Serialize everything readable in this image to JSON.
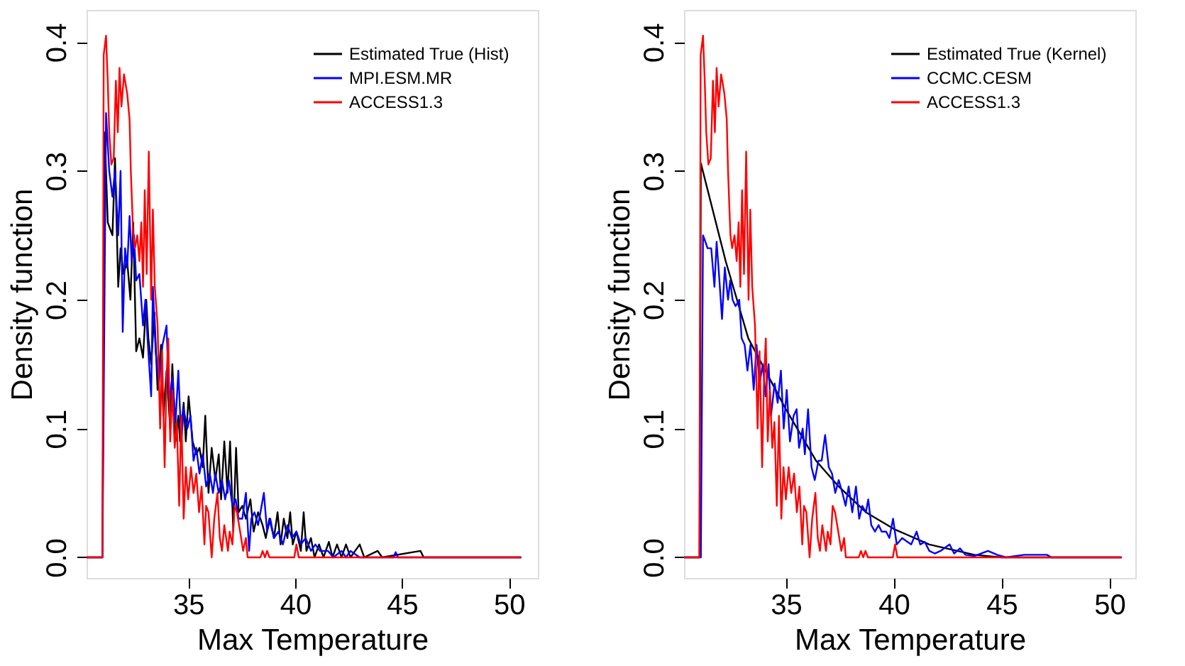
{
  "chart_data": [
    {
      "type": "line",
      "xlabel": "Max Temperature",
      "ylabel": "Density function",
      "xlim": [
        30.25,
        51.35
      ],
      "ylim": [
        -0.016,
        0.425
      ],
      "xticks": [
        35,
        40,
        45,
        50
      ],
      "yticks": [
        {
          "value": 0,
          "label": "0.0"
        },
        0.1,
        0.2,
        0.3,
        0.4
      ],
      "grid": false,
      "legend": "top right",
      "series": [
        {
          "name": "Estimated True (Hist)",
          "color": "#000000",
          "x": [
            30.25,
            30.99,
            31.1,
            31.24,
            31.46,
            31.58,
            31.73,
            31.84,
            31.98,
            32.15,
            32.3,
            32.43,
            32.57,
            32.72,
            32.89,
            33.04,
            33.14,
            33.27,
            33.42,
            33.57,
            33.73,
            33.84,
            33.99,
            34.16,
            34.26,
            34.41,
            34.54,
            34.62,
            34.79,
            34.89,
            35.02,
            35.21,
            35.38,
            35.53,
            35.68,
            35.8,
            35.95,
            36.1,
            36.27,
            36.43,
            36.54,
            36.69,
            36.84,
            36.96,
            37.11,
            37.24,
            37.36,
            37.53,
            37.7,
            37.91,
            38.06,
            38.27,
            38.48,
            38.63,
            38.8,
            39.01,
            39.18,
            39.32,
            39.47,
            39.64,
            39.77,
            39.89,
            40.06,
            40.27,
            40.4,
            40.53,
            40.74,
            40.91,
            41.12,
            41.33,
            41.58,
            41.75,
            41.96,
            42.17,
            42.38,
            42.59,
            43.02,
            43.23,
            43.86,
            44.07,
            45.86,
            46.01,
            50.57
          ],
          "values": [
            0,
            0,
            0.33,
            0.26,
            0.25,
            0.31,
            0.21,
            0.24,
            0.22,
            0.23,
            0.2,
            0.26,
            0.16,
            0.17,
            0.155,
            0.2,
            0.17,
            0.15,
            0.19,
            0.13,
            0.165,
            0.11,
            0.145,
            0.1,
            0.15,
            0.09,
            0.11,
            0.09,
            0.12,
            0.09,
            0.125,
            0.09,
            0.08,
            0.085,
            0.07,
            0.11,
            0.05,
            0.085,
            0.06,
            0.08,
            0.045,
            0.09,
            0.05,
            0.09,
            0.02,
            0.085,
            0.035,
            0.04,
            0.03,
            0.045,
            0.02,
            0.035,
            0.025,
            0.015,
            0.03,
            0.015,
            0.035,
            0.01,
            0.03,
            0.015,
            0.035,
            0.01,
            0.02,
            0.005,
            0.035,
            0.005,
            0.015,
            0,
            0.01,
            0,
            0.012,
            0,
            0.01,
            0,
            0.01,
            0,
            0.01,
            0,
            0.005,
            0,
            0.005,
            0,
            0
          ]
        },
        {
          "name": "MPI.ESM.MR",
          "color": "#0000ff",
          "x": [
            30.25,
            30.99,
            31.16,
            31.31,
            31.46,
            31.58,
            31.73,
            31.84,
            31.94,
            32.05,
            32.15,
            32.26,
            32.36,
            32.47,
            32.57,
            32.72,
            32.89,
            33.0,
            33.1,
            33.27,
            33.35,
            33.48,
            33.63,
            33.8,
            33.99,
            34.11,
            34.26,
            34.41,
            34.54,
            34.68,
            34.79,
            34.96,
            35.11,
            35.25,
            35.38,
            35.53,
            35.68,
            35.84,
            36.01,
            36.16,
            36.27,
            36.43,
            36.58,
            36.73,
            36.9,
            37.07,
            37.22,
            37.36,
            37.53,
            37.7,
            37.85,
            37.95,
            38.1,
            38.27,
            38.38,
            38.54,
            38.69,
            38.84,
            39.01,
            39.22,
            39.43,
            39.64,
            39.85,
            40.06,
            40.27,
            40.49,
            40.74,
            40.95,
            41.16,
            41.54,
            41.79,
            42.17,
            42.38,
            42.59,
            43.02,
            44.6,
            44.7,
            44.81,
            50.57
          ],
          "values": [
            0,
            0,
            0.345,
            0.3,
            0.28,
            0.3,
            0.25,
            0.3,
            0.175,
            0.24,
            0.225,
            0.265,
            0.23,
            0.25,
            0.215,
            0.22,
            0.18,
            0.2,
            0.17,
            0.125,
            0.21,
            0.16,
            0.135,
            0.165,
            0.18,
            0.12,
            0.14,
            0.105,
            0.145,
            0.09,
            0.115,
            0.1,
            0.11,
            0.075,
            0.085,
            0.065,
            0.08,
            0.055,
            0.065,
            0.05,
            0.065,
            0.05,
            0.06,
            0.045,
            0.06,
            0.04,
            0.045,
            0.03,
            0.03,
            0.05,
            0.005,
            0.03,
            0.035,
            0.025,
            0.035,
            0.05,
            0.02,
            0.03,
            0.015,
            0.02,
            0.01,
            0.025,
            0.015,
            0.02,
            0.01,
            0.015,
            0.005,
            0.01,
            0.005,
            0.005,
            0,
            0.005,
            0,
            0.005,
            0,
            0,
            0.004,
            0,
            0
          ]
        },
        {
          "name": "ACCESS1.3",
          "color": "#ff0000",
          "x": [
            30.25,
            30.99,
            31.05,
            31.16,
            31.24,
            31.31,
            31.41,
            31.52,
            31.62,
            31.71,
            31.79,
            31.88,
            32.0,
            32.15,
            32.26,
            32.32,
            32.43,
            32.51,
            32.62,
            32.72,
            32.81,
            32.89,
            32.97,
            33.06,
            33.16,
            33.27,
            33.35,
            33.44,
            33.57,
            33.69,
            33.78,
            33.9,
            33.99,
            34.07,
            34.16,
            34.26,
            34.37,
            34.47,
            34.58,
            34.68,
            34.79,
            34.89,
            35.0,
            35.13,
            35.25,
            35.38,
            35.51,
            35.63,
            35.76,
            35.84,
            35.95,
            36.1,
            36.22,
            36.37,
            36.48,
            36.58,
            36.69,
            36.86,
            36.94,
            37.07,
            37.17,
            37.28,
            37.43,
            37.57,
            37.7,
            37.78,
            38.38,
            38.48,
            38.59,
            38.69,
            38.8,
            39.96,
            40.06,
            40.17,
            50.57
          ],
          "values": [
            0,
            0,
            0.39,
            0.405,
            0.37,
            0.33,
            0.305,
            0.31,
            0.37,
            0.33,
            0.38,
            0.35,
            0.375,
            0.36,
            0.34,
            0.3,
            0.25,
            0.24,
            0.25,
            0.23,
            0.26,
            0.21,
            0.285,
            0.22,
            0.315,
            0.2,
            0.27,
            0.21,
            0.18,
            0.1,
            0.16,
            0.07,
            0.14,
            0.17,
            0.09,
            0.13,
            0.085,
            0.105,
            0.04,
            0.11,
            0.03,
            0.07,
            0.045,
            0.07,
            0.05,
            0.065,
            0.035,
            0.055,
            0.01,
            0.04,
            0.035,
            0,
            0.03,
            0.05,
            0.015,
            0.005,
            0.025,
            0.005,
            0.02,
            0.01,
            0.04,
            0.035,
            0.02,
            0.005,
            0.015,
            0,
            0,
            0.005,
            0,
            0.005,
            0,
            0,
            0.01,
            0,
            0
          ]
        }
      ]
    },
    {
      "type": "line",
      "xlabel": "Max Temperature",
      "ylabel": "Density function",
      "xlim": [
        30.28,
        51.2
      ],
      "ylim": [
        -0.016,
        0.425
      ],
      "xticks": [
        35,
        40,
        45,
        50
      ],
      "yticks": [
        {
          "value": 0,
          "label": "0.0"
        },
        0.1,
        0.2,
        0.3,
        0.4
      ],
      "grid": false,
      "legend": "top right",
      "series": [
        {
          "name": "Estimated True (Kernel)",
          "color": "#000000",
          "x": [
            30.28,
            31.0,
            31.06,
            32.21,
            33.26,
            35.0,
            36.4,
            37.45,
            38.71,
            40.01,
            41.65,
            43.74,
            45.0,
            50.56
          ],
          "values": [
            0,
            0,
            0.306,
            0.23,
            0.17,
            0.115,
            0.075,
            0.055,
            0.035,
            0.022,
            0.01,
            0.002,
            0,
            0
          ]
        },
        {
          "name": "CCMC.CESM",
          "color": "#0000ff",
          "x": [
            30.28,
            31.06,
            31.16,
            31.27,
            31.37,
            31.54,
            31.69,
            31.79,
            31.9,
            32.04,
            32.17,
            32.32,
            32.42,
            32.53,
            32.67,
            32.84,
            32.95,
            33.09,
            33.22,
            33.36,
            33.51,
            33.64,
            33.78,
            33.93,
            34.06,
            34.2,
            34.31,
            34.48,
            34.62,
            34.77,
            34.9,
            35.04,
            35.19,
            35.36,
            35.5,
            35.61,
            35.78,
            35.88,
            36.03,
            36.19,
            36.34,
            36.51,
            36.66,
            36.82,
            36.99,
            37.14,
            37.29,
            37.45,
            37.62,
            37.77,
            37.91,
            38.08,
            38.25,
            38.4,
            38.54,
            38.71,
            38.82,
            38.96,
            39.13,
            39.3,
            39.44,
            39.65,
            39.8,
            39.97,
            40.14,
            40.39,
            40.64,
            40.81,
            41.06,
            41.23,
            41.44,
            41.65,
            41.9,
            42.17,
            42.59,
            42.8,
            43.07,
            43.32,
            43.74,
            44.37,
            44.79,
            45.21,
            46.05,
            47.1,
            47.31,
            50.56
          ],
          "values": [
            0,
            0,
            0.25,
            0.245,
            0.24,
            0.24,
            0.21,
            0.245,
            0.22,
            0.185,
            0.225,
            0.2,
            0.215,
            0.2,
            0.195,
            0.2,
            0.17,
            0.165,
            0.145,
            0.165,
            0.13,
            0.165,
            0.135,
            0.15,
            0.125,
            0.15,
            0.11,
            0.135,
            0.12,
            0.145,
            0.1,
            0.13,
            0.09,
            0.11,
            0.115,
            0.085,
            0.1,
            0.08,
            0.115,
            0.07,
            0.06,
            0.075,
            0.075,
            0.095,
            0.07,
            0.065,
            0.05,
            0.06,
            0.05,
            0.04,
            0.055,
            0.035,
            0.055,
            0.03,
            0.04,
            0.035,
            0.045,
            0.025,
            0.02,
            0.025,
            0.02,
            0.02,
            0.015,
            0.03,
            0.01,
            0.015,
            0.012,
            0.01,
            0.02,
            0.01,
            0.012,
            0.005,
            0.003,
            0.005,
            0.01,
            0.003,
            0.007,
            0.002,
            0.001,
            0.005,
            0.002,
            0,
            0.002,
            0.002,
            0,
            0
          ]
        },
        {
          "name": "ACCESS1.3",
          "color": "#ff0000",
          "x": [
            30.28,
            30.99,
            31.05,
            31.16,
            31.24,
            31.31,
            31.41,
            31.52,
            31.62,
            31.71,
            31.79,
            31.88,
            32.0,
            32.15,
            32.26,
            32.32,
            32.43,
            32.51,
            32.62,
            32.72,
            32.81,
            32.89,
            32.97,
            33.06,
            33.16,
            33.27,
            33.35,
            33.44,
            33.57,
            33.69,
            33.78,
            33.9,
            33.99,
            34.07,
            34.16,
            34.26,
            34.37,
            34.47,
            34.58,
            34.68,
            34.79,
            34.89,
            35.0,
            35.13,
            35.25,
            35.38,
            35.51,
            35.63,
            35.76,
            35.84,
            35.95,
            36.1,
            36.22,
            36.37,
            36.48,
            36.58,
            36.69,
            36.86,
            36.94,
            37.07,
            37.17,
            37.28,
            37.43,
            37.57,
            37.7,
            37.78,
            38.38,
            38.48,
            38.59,
            38.69,
            38.8,
            39.96,
            40.06,
            40.17,
            50.57
          ],
          "values": [
            0,
            0,
            0.39,
            0.405,
            0.37,
            0.33,
            0.305,
            0.31,
            0.37,
            0.33,
            0.38,
            0.35,
            0.375,
            0.36,
            0.34,
            0.3,
            0.25,
            0.24,
            0.25,
            0.23,
            0.26,
            0.21,
            0.285,
            0.22,
            0.315,
            0.2,
            0.27,
            0.21,
            0.18,
            0.1,
            0.16,
            0.07,
            0.14,
            0.17,
            0.09,
            0.13,
            0.085,
            0.105,
            0.04,
            0.11,
            0.03,
            0.07,
            0.045,
            0.07,
            0.05,
            0.065,
            0.035,
            0.055,
            0.01,
            0.04,
            0.035,
            0,
            0.03,
            0.05,
            0.015,
            0.005,
            0.025,
            0.005,
            0.02,
            0.01,
            0.04,
            0.035,
            0.02,
            0.005,
            0.015,
            0,
            0,
            0.005,
            0,
            0.005,
            0,
            0,
            0.01,
            0,
            0
          ]
        }
      ]
    }
  ]
}
